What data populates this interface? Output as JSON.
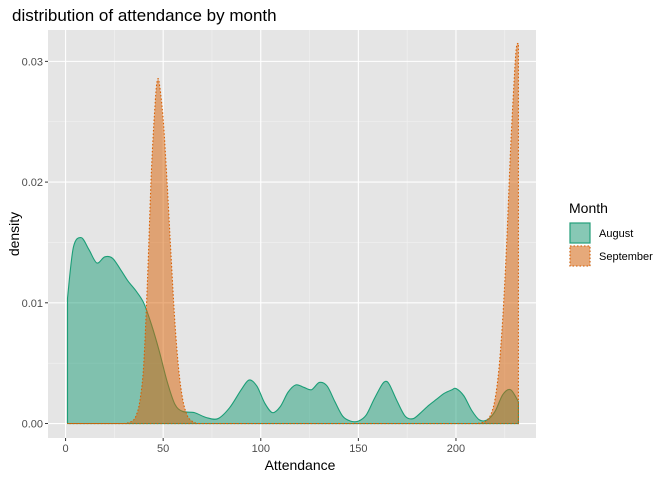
{
  "chart_data": {
    "type": "area",
    "title": "distribution of attendance by month",
    "xlabel": "Attendance",
    "ylabel": "density",
    "xlim": [
      -9,
      241
    ],
    "ylim": [
      -0.0012,
      0.0326
    ],
    "x_ticks": [
      0,
      50,
      100,
      150,
      200
    ],
    "x_tick_labels": [
      "0",
      "50",
      "100",
      "150",
      "200"
    ],
    "y_ticks": [
      0.0,
      0.01,
      0.02,
      0.03
    ],
    "y_tick_labels": [
      "0.00",
      "0.01",
      "0.02",
      "0.03"
    ],
    "grid": true,
    "legend": {
      "title": "Month",
      "position": "right",
      "entries": [
        "August",
        "September"
      ]
    },
    "series": [
      {
        "name": "August",
        "fill": "#1b9e77",
        "stroke": "#1b9e77",
        "line_style": "solid",
        "opacity": 0.5,
        "x": [
          1,
          4,
          8,
          12,
          16,
          20,
          24,
          28,
          32,
          36,
          40,
          44,
          48,
          52,
          56,
          60,
          66,
          72,
          78,
          84,
          90,
          94,
          98,
          102,
          106,
          110,
          114,
          118,
          122,
          126,
          130,
          134,
          138,
          142,
          146,
          150,
          154,
          158,
          162,
          164,
          166,
          170,
          174,
          178,
          182,
          186,
          190,
          194,
          198,
          200,
          204,
          208,
          212,
          216,
          220,
          224,
          228,
          232
        ],
        "y": [
          0.0104,
          0.0146,
          0.0154,
          0.0144,
          0.0133,
          0.0138,
          0.0137,
          0.0128,
          0.0118,
          0.011,
          0.01,
          0.0082,
          0.006,
          0.0035,
          0.0016,
          0.001,
          0.0009,
          0.0005,
          0.0004,
          0.0013,
          0.0028,
          0.0036,
          0.0031,
          0.0017,
          0.0009,
          0.0014,
          0.0026,
          0.0032,
          0.003,
          0.0028,
          0.0034,
          0.0031,
          0.0018,
          0.0006,
          0.0002,
          0.0002,
          0.0007,
          0.002,
          0.0032,
          0.0035,
          0.0032,
          0.0018,
          0.0006,
          0.0004,
          0.0009,
          0.0015,
          0.002,
          0.0025,
          0.0028,
          0.0029,
          0.0023,
          0.0011,
          0.0003,
          0.0003,
          0.001,
          0.0024,
          0.0028,
          0.0018
        ]
      },
      {
        "name": "September",
        "fill": "#d95f02",
        "stroke": "#d95f02",
        "line_style": "dotted",
        "opacity": 0.5,
        "x": [
          1,
          20,
          30,
          34,
          36,
          38,
          40,
          42,
          44,
          46,
          47,
          48,
          50,
          52,
          54,
          56,
          58,
          60,
          62,
          64,
          68,
          80,
          120,
          160,
          200,
          210,
          214,
          216,
          218,
          220,
          222,
          224,
          226,
          228,
          230,
          231,
          232
        ],
        "y": [
          0.0,
          0.0,
          0.0,
          0.0002,
          0.0006,
          0.0018,
          0.0048,
          0.012,
          0.021,
          0.0268,
          0.0284,
          0.0282,
          0.0252,
          0.02,
          0.014,
          0.0084,
          0.0044,
          0.002,
          0.0008,
          0.0003,
          0.0,
          0.0,
          0.0,
          0.0,
          0.0,
          0.0,
          0.0001,
          0.0003,
          0.0008,
          0.002,
          0.0045,
          0.0088,
          0.015,
          0.0228,
          0.029,
          0.0312,
          0.0315
        ]
      }
    ]
  }
}
